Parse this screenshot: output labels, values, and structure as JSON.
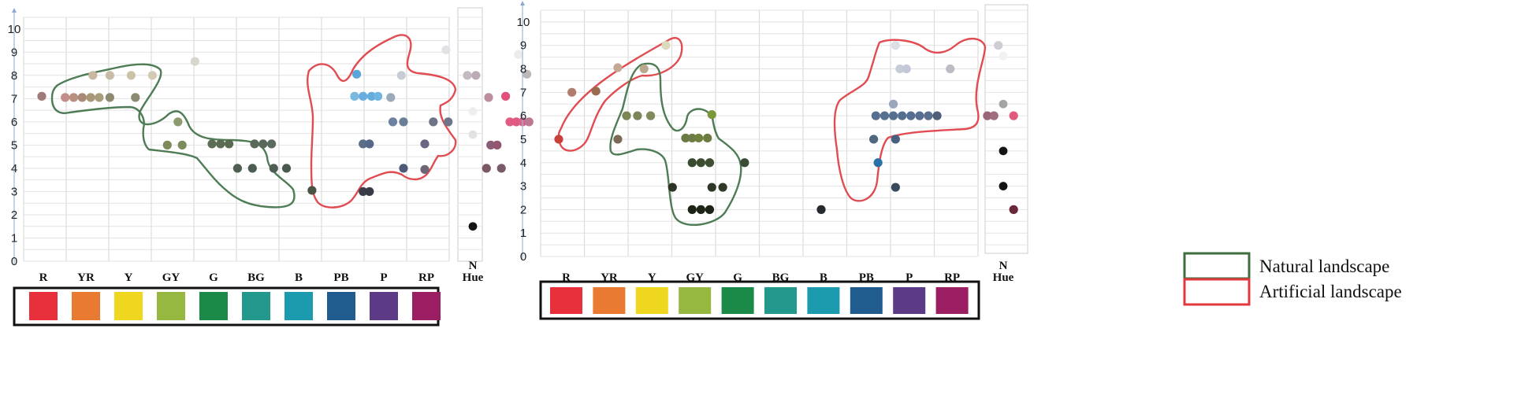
{
  "chart_data": [
    {
      "type": "scatter",
      "panel": "left",
      "ylim": [
        0,
        10
      ],
      "yticks": [
        0,
        1,
        2,
        3,
        4,
        5,
        6,
        7,
        8,
        9,
        10
      ],
      "categories": [
        "R",
        "YR",
        "Y",
        "GY",
        "G",
        "BG",
        "B",
        "PB",
        "P",
        "RP"
      ],
      "neutral_label": "N",
      "hue_label": "Hue",
      "points": [
        {
          "hue": 0.0,
          "value": 7.1,
          "color": "#9d7b7b"
        },
        {
          "hue": 0.55,
          "value": 7.05,
          "color": "#c58c8c"
        },
        {
          "hue": 0.75,
          "value": 7.05,
          "color": "#b89080"
        },
        {
          "hue": 0.95,
          "value": 7.05,
          "color": "#a88a76"
        },
        {
          "hue": 1.15,
          "value": 7.05,
          "color": "#a89878"
        },
        {
          "hue": 1.35,
          "value": 7.05,
          "color": "#a89c7c"
        },
        {
          "hue": 1.6,
          "value": 7.05,
          "color": "#8e8a70"
        },
        {
          "hue": 2.2,
          "value": 7.05,
          "color": "#8a8a6e"
        },
        {
          "hue": 1.2,
          "value": 8.0,
          "color": "#c8b8a2"
        },
        {
          "hue": 1.6,
          "value": 8.0,
          "color": "#c8bca6"
        },
        {
          "hue": 2.1,
          "value": 8.0,
          "color": "#ccc2a8"
        },
        {
          "hue": 2.6,
          "value": 8.0,
          "color": "#d2cab2"
        },
        {
          "hue": 3.6,
          "value": 8.6,
          "color": "#d8d6cc"
        },
        {
          "hue": 3.2,
          "value": 6.0,
          "color": "#8c9a70"
        },
        {
          "hue": 2.95,
          "value": 5.0,
          "color": "#7e8a58"
        },
        {
          "hue": 3.3,
          "value": 5.0,
          "color": "#7c8c5a"
        },
        {
          "hue": 4.0,
          "value": 5.05,
          "color": "#5e6e56"
        },
        {
          "hue": 4.2,
          "value": 5.05,
          "color": "#5c6c54"
        },
        {
          "hue": 4.4,
          "value": 5.05,
          "color": "#5a6a52"
        },
        {
          "hue": 5.0,
          "value": 5.05,
          "color": "#596a5a"
        },
        {
          "hue": 5.2,
          "value": 5.05,
          "color": "#586a5a"
        },
        {
          "hue": 5.4,
          "value": 5.05,
          "color": "#5a6a5c"
        },
        {
          "hue": 4.6,
          "value": 4.0,
          "color": "#4e5e50"
        },
        {
          "hue": 4.95,
          "value": 4.0,
          "color": "#4c5c52"
        },
        {
          "hue": 5.45,
          "value": 4.0,
          "color": "#4e5e52"
        },
        {
          "hue": 5.75,
          "value": 4.0,
          "color": "#4a5a4e"
        },
        {
          "hue": 6.35,
          "value": 3.05,
          "color": "#4a5444"
        },
        {
          "hue": 7.4,
          "value": 8.05,
          "color": "#5aa6da"
        },
        {
          "hue": 7.35,
          "value": 7.1,
          "color": "#7ab8e0"
        },
        {
          "hue": 7.55,
          "value": 7.1,
          "color": "#6aaee0"
        },
        {
          "hue": 7.75,
          "value": 7.1,
          "color": "#64acde"
        },
        {
          "hue": 7.9,
          "value": 7.1,
          "color": "#70b4e2"
        },
        {
          "hue": 8.2,
          "value": 7.05,
          "color": "#9aaabc"
        },
        {
          "hue": 8.45,
          "value": 8.0,
          "color": "#c8ccd4"
        },
        {
          "hue": 8.25,
          "value": 6.0,
          "color": "#6c82a0"
        },
        {
          "hue": 8.5,
          "value": 6.0,
          "color": "#6a7e98"
        },
        {
          "hue": 9.2,
          "value": 6.0,
          "color": "#6e7488"
        },
        {
          "hue": 9.55,
          "value": 6.0,
          "color": "#707488"
        },
        {
          "hue": 7.55,
          "value": 5.05,
          "color": "#5a6e88"
        },
        {
          "hue": 7.7,
          "value": 5.05,
          "color": "#56688a"
        },
        {
          "hue": 9.0,
          "value": 5.05,
          "color": "#6a6684"
        },
        {
          "hue": 8.5,
          "value": 4.0,
          "color": "#4c5a78"
        },
        {
          "hue": 9.0,
          "value": 3.95,
          "color": "#6e6676"
        },
        {
          "hue": 7.55,
          "value": 3.0,
          "color": "#3a3c4a"
        },
        {
          "hue": 7.7,
          "value": 3.0,
          "color": "#383a48"
        },
        {
          "hue": 9.5,
          "value": 9.1,
          "color": "#e2e2e6"
        },
        {
          "hue": 10.0,
          "value": 8.0,
          "color": "#c6bac2"
        },
        {
          "hue": 10.2,
          "value": 8.0,
          "color": "#bcaab6"
        },
        {
          "hue": 10.5,
          "value": 7.05,
          "color": "#bc8ea0"
        },
        {
          "hue": 10.9,
          "value": 7.1,
          "color": "#e0507a"
        },
        {
          "hue": 11.4,
          "value": 8.05,
          "color": "#bcb8b8"
        },
        {
          "hue": 11.0,
          "value": 6.0,
          "color": "#e05c80"
        },
        {
          "hue": 11.15,
          "value": 6.0,
          "color": "#e25a82"
        },
        {
          "hue": 11.3,
          "value": 6.0,
          "color": "#d86488"
        },
        {
          "hue": 11.45,
          "value": 6.0,
          "color": "#bc7890"
        },
        {
          "hue": 10.55,
          "value": 5.0,
          "color": "#8a5c76"
        },
        {
          "hue": 10.7,
          "value": 5.0,
          "color": "#94566e"
        },
        {
          "hue": 10.45,
          "value": 4.0,
          "color": "#7a5866"
        },
        {
          "hue": 10.8,
          "value": 4.0,
          "color": "#7a5a68"
        },
        {
          "hue": 11.2,
          "value": 8.9,
          "color": "#ececec"
        }
      ],
      "neutral_points": [
        {
          "value": 6.45,
          "color": "#eeeeee"
        },
        {
          "value": 5.45,
          "color": "#e2e2e2"
        },
        {
          "value": 1.5,
          "color": "#141414"
        }
      ]
    },
    {
      "type": "scatter",
      "panel": "right",
      "ylim": [
        0,
        10
      ],
      "yticks": [
        0,
        1,
        2,
        3,
        4,
        5,
        6,
        7,
        8,
        9,
        10
      ],
      "categories": [
        "R",
        "YR",
        "Y",
        "GY",
        "G",
        "BG",
        "B",
        "PB",
        "P",
        "RP"
      ],
      "neutral_label": "N",
      "hue_label": "Hue",
      "points": [
        {
          "hue": 0.0,
          "value": 5.0,
          "color": "#c8403a"
        },
        {
          "hue": 0.3,
          "value": 7.0,
          "color": "#b07c6e"
        },
        {
          "hue": 0.85,
          "value": 7.05,
          "color": "#9c6a50"
        },
        {
          "hue": 1.35,
          "value": 8.05,
          "color": "#c4a894"
        },
        {
          "hue": 1.95,
          "value": 8.0,
          "color": "#b8a88c"
        },
        {
          "hue": 2.45,
          "value": 9.0,
          "color": "#dcdabc"
        },
        {
          "hue": 1.35,
          "value": 5.0,
          "color": "#7c6a56"
        },
        {
          "hue": 1.55,
          "value": 6.0,
          "color": "#7a8656"
        },
        {
          "hue": 1.8,
          "value": 6.0,
          "color": "#7a8658"
        },
        {
          "hue": 2.1,
          "value": 6.0,
          "color": "#7e8a5a"
        },
        {
          "hue": 2.9,
          "value": 5.05,
          "color": "#6a7a44"
        },
        {
          "hue": 3.05,
          "value": 5.05,
          "color": "#6c7c44"
        },
        {
          "hue": 3.2,
          "value": 5.05,
          "color": "#70803e"
        },
        {
          "hue": 3.4,
          "value": 5.05,
          "color": "#6c7c40"
        },
        {
          "hue": 3.5,
          "value": 6.05,
          "color": "#7a9838"
        },
        {
          "hue": 3.05,
          "value": 4.0,
          "color": "#3a4a2e"
        },
        {
          "hue": 3.25,
          "value": 4.0,
          "color": "#3c4c30"
        },
        {
          "hue": 3.45,
          "value": 4.0,
          "color": "#3e4e32"
        },
        {
          "hue": 4.25,
          "value": 4.0,
          "color": "#3a4c36"
        },
        {
          "hue": 2.6,
          "value": 2.95,
          "color": "#2c3224"
        },
        {
          "hue": 3.5,
          "value": 2.95,
          "color": "#2e3626"
        },
        {
          "hue": 3.75,
          "value": 2.95,
          "color": "#303828"
        },
        {
          "hue": 3.05,
          "value": 2.0,
          "color": "#1c2418"
        },
        {
          "hue": 3.25,
          "value": 2.0,
          "color": "#1e2618"
        },
        {
          "hue": 3.45,
          "value": 2.0,
          "color": "#1c2418"
        },
        {
          "hue": 6.0,
          "value": 2.0,
          "color": "#262a30"
        },
        {
          "hue": 7.65,
          "value": 6.5,
          "color": "#9aa6bc"
        },
        {
          "hue": 7.25,
          "value": 6.0,
          "color": "#566e90"
        },
        {
          "hue": 7.45,
          "value": 6.0,
          "color": "#56708e"
        },
        {
          "hue": 7.65,
          "value": 6.0,
          "color": "#54708e"
        },
        {
          "hue": 7.85,
          "value": 6.0,
          "color": "#52708e"
        },
        {
          "hue": 8.05,
          "value": 6.0,
          "color": "#566e92"
        },
        {
          "hue": 8.25,
          "value": 6.0,
          "color": "#586e90"
        },
        {
          "hue": 8.45,
          "value": 6.0,
          "color": "#5a6e8e"
        },
        {
          "hue": 8.65,
          "value": 6.0,
          "color": "#4e5e78"
        },
        {
          "hue": 7.2,
          "value": 5.0,
          "color": "#4e6880"
        },
        {
          "hue": 7.7,
          "value": 5.0,
          "color": "#46607e"
        },
        {
          "hue": 7.3,
          "value": 4.0,
          "color": "#2a72a6"
        },
        {
          "hue": 7.7,
          "value": 2.95,
          "color": "#384a5c"
        },
        {
          "hue": 7.7,
          "value": 9.0,
          "color": "#dcdfe6"
        },
        {
          "hue": 7.8,
          "value": 8.0,
          "color": "#c8ccd8"
        },
        {
          "hue": 7.95,
          "value": 8.0,
          "color": "#c2c8d6"
        },
        {
          "hue": 8.95,
          "value": 8.0,
          "color": "#bcbcc4"
        },
        {
          "hue": 10.05,
          "value": 9.0,
          "color": "#d0ccd4"
        },
        {
          "hue": 9.8,
          "value": 6.0,
          "color": "#9a6676"
        },
        {
          "hue": 9.95,
          "value": 6.0,
          "color": "#a06e7e"
        },
        {
          "hue": 10.4,
          "value": 6.0,
          "color": "#e05a7c"
        },
        {
          "hue": 10.4,
          "value": 2.0,
          "color": "#682838"
        }
      ],
      "neutral_points": [
        {
          "value": 8.55,
          "color": "#f2f2f2"
        },
        {
          "value": 6.5,
          "color": "#a4a4a4"
        },
        {
          "value": 4.5,
          "color": "#141414"
        },
        {
          "value": 3.0,
          "color": "#141414"
        }
      ]
    }
  ],
  "hue_swatches": [
    {
      "code": "R",
      "color": "#e8303c"
    },
    {
      "code": "YR",
      "color": "#e97a32"
    },
    {
      "code": "Y",
      "color": "#eed71e"
    },
    {
      "code": "GY",
      "color": "#97b840"
    },
    {
      "code": "G",
      "color": "#1b8a48"
    },
    {
      "code": "BG",
      "color": "#22998c"
    },
    {
      "code": "B",
      "color": "#1c9aae"
    },
    {
      "code": "PB",
      "color": "#205c8e"
    },
    {
      "code": "P",
      "color": "#5c3a86"
    },
    {
      "code": "RP",
      "color": "#9c1e62"
    }
  ],
  "legend": [
    {
      "label": "Natural landscape",
      "color": "#3e6e40"
    },
    {
      "label": "Artificial landscape",
      "color": "#e0383c"
    }
  ]
}
